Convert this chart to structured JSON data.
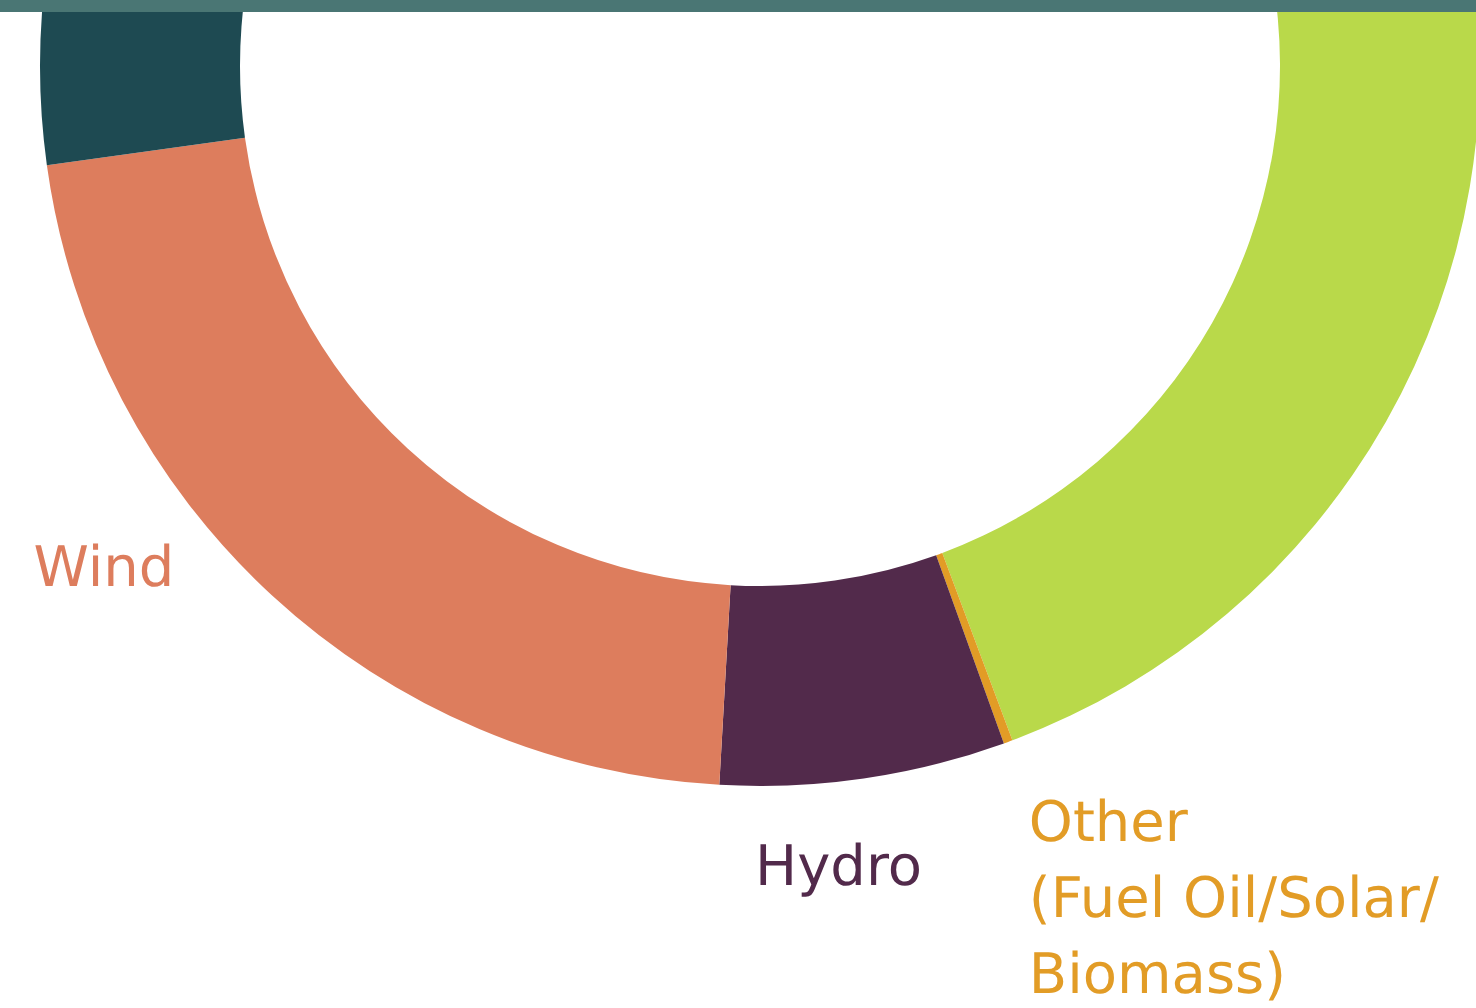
{
  "chart_data": {
    "type": "donut",
    "categories": [
      null,
      "Other (Fuel Oil/Solar/Biomass)",
      "Hydro",
      "Wind",
      null
    ],
    "values": [
      44.3,
      0.2,
      6.4,
      21.9,
      27.2
    ],
    "colors": [
      "#b9d94a",
      "#e29c26",
      "#522a4b",
      "#dd7d5d",
      "#1e4a52"
    ]
  }
}
